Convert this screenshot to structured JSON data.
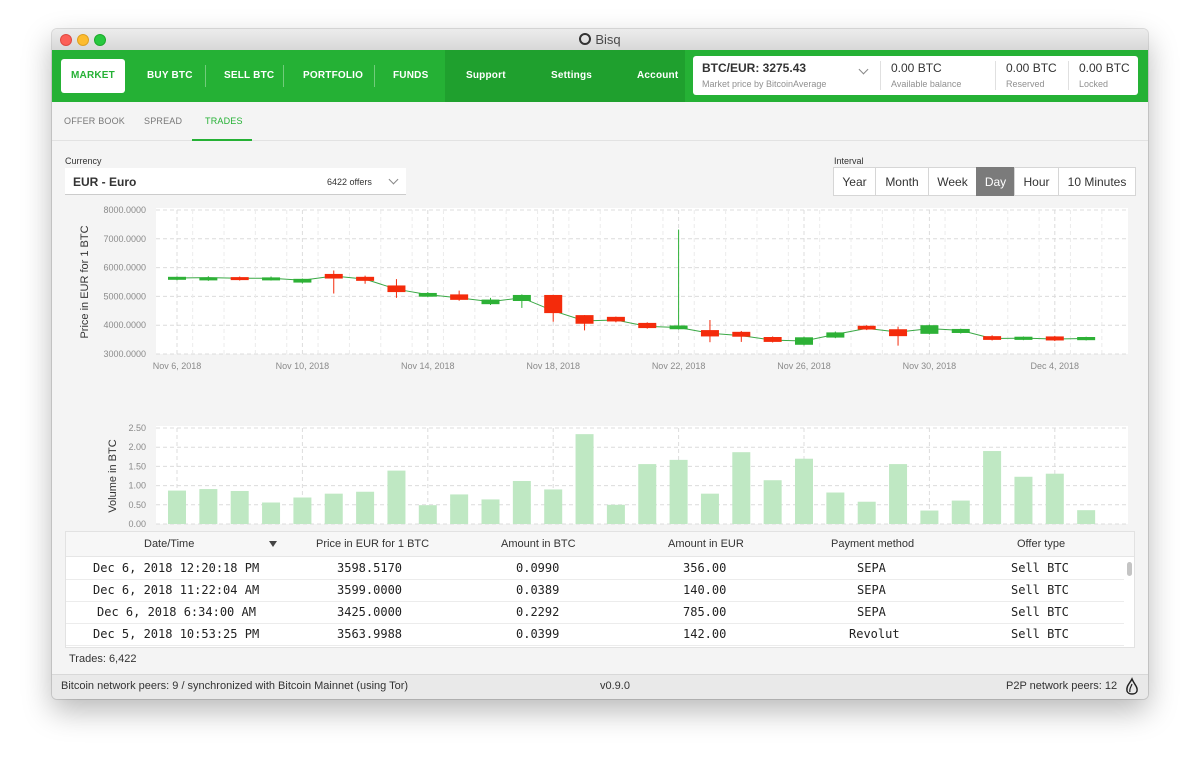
{
  "window": {
    "title": "Bisq"
  },
  "nav": {
    "market": "MARKET",
    "buy_btc": "BUY BTC",
    "sell_btc": "SELL BTC",
    "portfolio": "PORTFOLIO",
    "funds": "FUNDS",
    "support": "Support",
    "settings": "Settings",
    "account": "Account"
  },
  "balance": {
    "market_price": "BTC/EUR: 3275.43",
    "market_price_sub": "Market price by BitcoinAverage",
    "available_value": "0.00 BTC",
    "available_label": "Available balance",
    "reserved_value": "0.00 BTC",
    "reserved_label": "Reserved",
    "locked_value": "0.00 BTC",
    "locked_label": "Locked"
  },
  "subtabs": {
    "offer_book": "OFFER BOOK",
    "spread": "SPREAD",
    "trades": "TRADES"
  },
  "currency": {
    "label": "Currency",
    "value": "EUR - Euro",
    "count": "6422 offers"
  },
  "interval": {
    "label": "Interval",
    "options": [
      "Year",
      "Month",
      "Week",
      "Day",
      "Hour",
      "10 Minutes"
    ],
    "selected": "Day"
  },
  "colors": {
    "brand_green": "#25b135",
    "candle_up": "#2db136",
    "candle_down": "#f42b0b",
    "volume_bar": "#bfe8c3"
  },
  "chart_data": [
    {
      "type": "candlestick",
      "ylabel": "Price in EUR for 1 BTC",
      "ylim": [
        3000,
        8000
      ],
      "yticks": [
        "8000.0000",
        "7000.0000",
        "6000.0000",
        "5000.0000",
        "4000.0000",
        "3000.0000"
      ],
      "xticks": [
        "Nov 6, 2018",
        "Nov 10, 2018",
        "Nov 14, 2018",
        "Nov 18, 2018",
        "Nov 22, 2018",
        "Nov 26, 2018",
        "Nov 30, 2018",
        "Dec 4, 2018"
      ],
      "grid": true,
      "x_start": "2018-11-06",
      "candles": [
        {
          "date": "2018-11-06",
          "open": 5580,
          "close": 5680,
          "high": 5690,
          "low": 5560
        },
        {
          "date": "2018-11-07",
          "open": 5560,
          "close": 5660,
          "high": 5700,
          "low": 5540
        },
        {
          "date": "2018-11-08",
          "open": 5670,
          "close": 5570,
          "high": 5690,
          "low": 5550
        },
        {
          "date": "2018-11-09",
          "open": 5570,
          "close": 5660,
          "high": 5690,
          "low": 5550
        },
        {
          "date": "2018-11-10",
          "open": 5480,
          "close": 5610,
          "high": 5620,
          "low": 5450
        },
        {
          "date": "2018-11-11",
          "open": 5780,
          "close": 5620,
          "high": 5900,
          "low": 5100
        },
        {
          "date": "2018-11-12",
          "open": 5680,
          "close": 5540,
          "high": 5720,
          "low": 5440
        },
        {
          "date": "2018-11-13",
          "open": 5380,
          "close": 5150,
          "high": 5600,
          "low": 4950
        },
        {
          "date": "2018-11-14",
          "open": 4990,
          "close": 5120,
          "high": 5150,
          "low": 4980
        },
        {
          "date": "2018-11-15",
          "open": 5070,
          "close": 4880,
          "high": 5200,
          "low": 4850
        },
        {
          "date": "2018-11-16",
          "open": 4730,
          "close": 4890,
          "high": 4950,
          "low": 4700
        },
        {
          "date": "2018-11-17",
          "open": 4840,
          "close": 5050,
          "high": 5070,
          "low": 4600
        },
        {
          "date": "2018-11-18",
          "open": 5050,
          "close": 4420,
          "high": 5050,
          "low": 4120
        },
        {
          "date": "2018-11-19",
          "open": 4350,
          "close": 4050,
          "high": 4350,
          "low": 3820
        },
        {
          "date": "2018-11-20",
          "open": 4290,
          "close": 4130,
          "high": 4300,
          "low": 4100
        },
        {
          "date": "2018-11-21",
          "open": 4080,
          "close": 3900,
          "high": 4100,
          "low": 3880
        },
        {
          "date": "2018-11-22",
          "open": 3860,
          "close": 3990,
          "high": 7320,
          "low": 3850
        },
        {
          "date": "2018-11-23",
          "open": 3830,
          "close": 3610,
          "high": 4180,
          "low": 3410
        },
        {
          "date": "2018-11-24",
          "open": 3770,
          "close": 3600,
          "high": 3800,
          "low": 3420
        },
        {
          "date": "2018-11-25",
          "open": 3590,
          "close": 3420,
          "high": 3610,
          "low": 3400
        },
        {
          "date": "2018-11-26",
          "open": 3320,
          "close": 3580,
          "high": 3600,
          "low": 3300
        },
        {
          "date": "2018-11-27",
          "open": 3570,
          "close": 3750,
          "high": 3780,
          "low": 3550
        },
        {
          "date": "2018-11-28",
          "open": 3980,
          "close": 3850,
          "high": 4000,
          "low": 3830
        },
        {
          "date": "2018-11-29",
          "open": 3860,
          "close": 3620,
          "high": 3950,
          "low": 3290
        },
        {
          "date": "2018-11-30",
          "open": 3700,
          "close": 4000,
          "high": 4020,
          "low": 3680
        },
        {
          "date": "2018-12-01",
          "open": 3730,
          "close": 3870,
          "high": 3880,
          "low": 3710
        },
        {
          "date": "2018-12-02",
          "open": 3620,
          "close": 3490,
          "high": 3650,
          "low": 3470
        },
        {
          "date": "2018-12-03",
          "open": 3490,
          "close": 3600,
          "high": 3610,
          "low": 3480
        },
        {
          "date": "2018-12-04",
          "open": 3610,
          "close": 3470,
          "high": 3630,
          "low": 3450
        },
        {
          "date": "2018-12-05",
          "open": 3480,
          "close": 3590,
          "high": 3600,
          "low": 3470
        }
      ],
      "trend": [
        5640,
        5650,
        5630,
        5630,
        5560,
        5710,
        5600,
        5250,
        5060,
        4950,
        4820,
        4950,
        4500,
        4150,
        4180,
        3960,
        3920,
        3720,
        3640,
        3480,
        3450,
        3680,
        3890,
        3760,
        3880,
        3820,
        3540,
        3550,
        3520,
        3540
      ]
    },
    {
      "type": "bar",
      "ylabel": "Volume in BTC",
      "ylim": [
        0,
        2.5
      ],
      "yticks": [
        "2.50",
        "2.00",
        "1.50",
        "1.00",
        "0.50",
        "0.00"
      ],
      "xticks": [
        "Nov 6, 2018",
        "Nov 10, 2018",
        "Nov 14, 2018",
        "Nov 18, 2018",
        "Nov 22, 2018",
        "Nov 26, 2018",
        "Nov 30, 2018",
        "Dec 4, 2018"
      ],
      "grid": true,
      "values": [
        0.87,
        0.91,
        0.86,
        0.56,
        0.69,
        0.79,
        0.84,
        1.39,
        0.49,
        0.77,
        0.64,
        1.12,
        0.9,
        2.34,
        0.5,
        1.56,
        1.67,
        0.79,
        1.87,
        1.14,
        1.7,
        0.82,
        0.58,
        1.56,
        0.35,
        0.61,
        1.9,
        1.23,
        1.31,
        0.36
      ]
    }
  ],
  "table": {
    "headers": [
      "Date/Time",
      "Price in EUR for 1 BTC",
      "Amount in BTC",
      "Amount in EUR",
      "Payment method",
      "Offer type"
    ],
    "rows": [
      [
        "Dec 6, 2018 12:20:18 PM",
        "3598.5170",
        "0.0990",
        "356.00",
        "SEPA",
        "Sell BTC"
      ],
      [
        "Dec 6, 2018 11:22:04 AM",
        "3599.0000",
        "0.0389",
        "140.00",
        "SEPA",
        "Sell BTC"
      ],
      [
        "Dec 6, 2018 6:34:00 AM",
        "3425.0000",
        "0.2292",
        "785.00",
        "SEPA",
        "Sell BTC"
      ],
      [
        "Dec 5, 2018 10:53:25 PM",
        "3563.9988",
        "0.0399",
        "142.00",
        "Revolut",
        "Sell BTC"
      ]
    ]
  },
  "trades_count": "Trades: 6,422",
  "footer": {
    "left": "Bitcoin network peers: 9 / synchronized with Bitcoin Mainnet (using Tor)",
    "version": "v0.9.0",
    "p2p": "P2P network peers: 12"
  }
}
